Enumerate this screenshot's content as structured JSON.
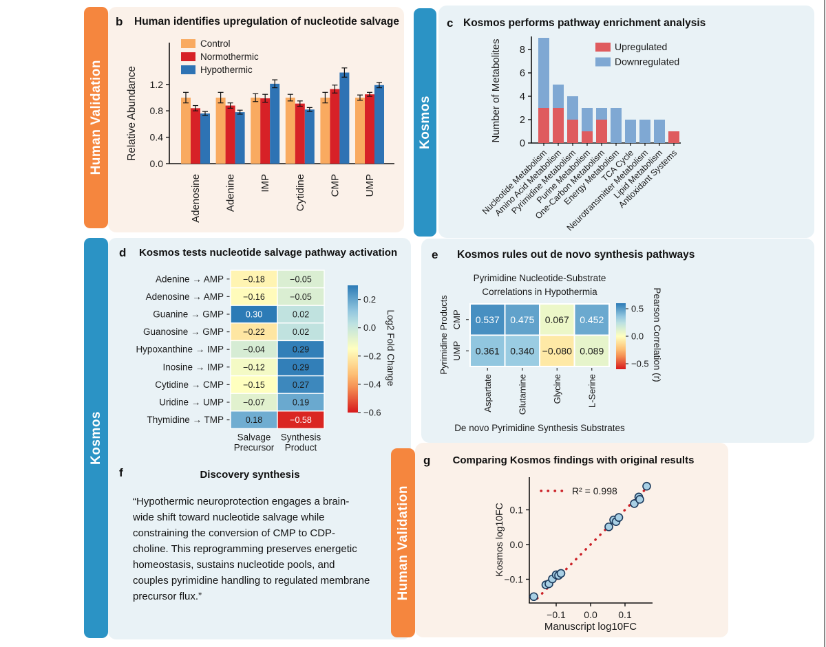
{
  "colors": {
    "tab_orange": "#F5863E",
    "tab_blue": "#2B93C5",
    "panel_cream": "#FBF1E9",
    "panel_lightblue": "#E9F2F6"
  },
  "tabs": [
    {
      "label": "Human Validation"
    },
    {
      "label": "Kosmos"
    },
    {
      "label": "Kosmos"
    },
    {
      "label": "Human Validation"
    }
  ],
  "panels": {
    "b": {
      "letter": "b",
      "title": "Human identifies upregulation of nucleotide salvage"
    },
    "c": {
      "letter": "c",
      "title": "Kosmos performs pathway enrichment analysis"
    },
    "d": {
      "letter": "d",
      "title": "Kosmos tests nucleotide salvage pathway activation"
    },
    "e": {
      "letter": "e",
      "title": "Kosmos rules out de novo synthesis pathways"
    },
    "f": {
      "letter": "f",
      "title": "Discovery synthesis",
      "quote": "“Hypothermic neuroprotection engages a brain-wide shift toward nucleotide salvage while constraining the conversion of CMP to CDP-choline. This reprogramming preserves energetic homeostasis, sustains nucleotide pools, and couples pyrimidine handling to regulated membrane precursor flux.”"
    },
    "g": {
      "letter": "g",
      "title": "Comparing Kosmos findings with original results"
    }
  },
  "chart_data": [
    {
      "panel": "b",
      "type": "bar",
      "grouped": true,
      "title": "Human identifies upregulation of nucleotide salvage",
      "categories": [
        "Adenosine",
        "Adenine",
        "IMP",
        "Cytidine",
        "CMP",
        "UMP"
      ],
      "series": [
        {
          "name": "Control",
          "color": "#F9AA60",
          "values": [
            1.0,
            1.0,
            1.0,
            1.0,
            1.0,
            1.0
          ],
          "errors": [
            0.08,
            0.08,
            0.06,
            0.05,
            0.08,
            0.04
          ]
        },
        {
          "name": "Normothermic",
          "color": "#D72127",
          "values": [
            0.84,
            0.88,
            0.99,
            0.91,
            1.13,
            1.05
          ],
          "errors": [
            0.04,
            0.04,
            0.06,
            0.04,
            0.06,
            0.03
          ]
        },
        {
          "name": "Hypothermic",
          "color": "#2E73B4",
          "values": [
            0.76,
            0.78,
            1.21,
            0.82,
            1.38,
            1.19
          ],
          "errors": [
            0.03,
            0.03,
            0.06,
            0.03,
            0.07,
            0.04
          ]
        }
      ],
      "xlabel": "",
      "ylabel": "Relative Abundance",
      "yticks": [
        0.0,
        0.4,
        0.8,
        1.2
      ],
      "ylim": [
        0,
        1.55
      ],
      "legend_position": "upper left",
      "grid": false
    },
    {
      "panel": "c",
      "type": "bar",
      "stacked": true,
      "title": "Kosmos performs pathway enrichment analysis",
      "categories": [
        "Nucleotide Metabolism",
        "Amino Acid Metabolism",
        "Pyrimidine Metabolism",
        "Purine Metabolism",
        "One-Carbon Metabolism",
        "Energy Metabolism",
        "TCA Cycle",
        "Neurotransmitter Metabolism",
        "Lipid Metabolism",
        "Antioxidant Systems"
      ],
      "series": [
        {
          "name": "Upregulated",
          "color": "#DF5B5E",
          "values": [
            3,
            3,
            2,
            1,
            2,
            0,
            0,
            0,
            0,
            1
          ]
        },
        {
          "name": "Downregulated",
          "color": "#7FA8D3",
          "values": [
            6,
            2,
            2,
            2,
            1,
            3,
            2,
            2,
            2,
            0
          ]
        }
      ],
      "xlabel": "",
      "ylabel": "Number of Metabolites",
      "yticks": [
        0,
        2,
        4,
        6,
        8
      ],
      "ylim": [
        0,
        9.3
      ],
      "legend_position": "upper right",
      "grid": false
    },
    {
      "panel": "d",
      "type": "heatmap",
      "title": "Kosmos tests nucleotide salvage pathway activation",
      "rows": [
        "Adenine → AMP",
        "Adenosine → AMP",
        "Guanine → GMP",
        "Guanosine → GMP",
        "Hypoxanthine → IMP",
        "Inosine → IMP",
        "Cytidine → CMP",
        "Uridine → UMP",
        "Thymidine → TMP"
      ],
      "cols": [
        [
          "Salvage",
          "Precursor"
        ],
        [
          "Synthesis",
          "Product"
        ]
      ],
      "values": [
        [
          -0.18,
          -0.05
        ],
        [
          -0.16,
          -0.05
        ],
        [
          0.3,
          0.02
        ],
        [
          -0.22,
          0.02
        ],
        [
          -0.04,
          0.29
        ],
        [
          -0.12,
          0.29
        ],
        [
          -0.15,
          0.27
        ],
        [
          -0.07,
          0.19
        ],
        [
          0.18,
          -0.58
        ]
      ],
      "white_text": [
        [
          0,
          0
        ],
        [
          0,
          0
        ],
        [
          1,
          0
        ],
        [
          0,
          0
        ],
        [
          0,
          0
        ],
        [
          0,
          0
        ],
        [
          0,
          0
        ],
        [
          0,
          0
        ],
        [
          0,
          1
        ]
      ],
      "decimals": 2,
      "colorbar": {
        "label": "Log2 Fold Change",
        "ticks": [
          0.2,
          0.0,
          -0.2,
          -0.4,
          -0.6
        ],
        "vmin": -0.6,
        "vmax": 0.3
      }
    },
    {
      "panel": "e",
      "type": "heatmap",
      "title": "Kosmos rules out de novo synthesis pathways",
      "title_lines": [
        "Pyrimidine Nucleotide-Substrate",
        "Correlations in Hypothermia"
      ],
      "rows": [
        "CMP",
        "UMP"
      ],
      "cols": [
        "Aspartate",
        "Glutamine",
        "Glycine",
        "L-Serine"
      ],
      "values": [
        [
          0.537,
          0.475,
          0.067,
          0.452
        ],
        [
          0.361,
          0.34,
          -0.08,
          0.089
        ]
      ],
      "white_text": [
        [
          1,
          1,
          0,
          1
        ],
        [
          0,
          0,
          0,
          0
        ]
      ],
      "decimals": 3,
      "xlabel": "De novo Pyrimidine Synthesis Substrates",
      "ylabel": "Pyrimidine Products",
      "colorbar": {
        "label": "Pearson Correlation (r)",
        "ticks": [
          0.5,
          0.0,
          -0.5
        ],
        "vmin": -0.6,
        "vmax": 0.6
      }
    },
    {
      "panel": "g",
      "type": "scatter",
      "title": "Comparing Kosmos findings with original results",
      "legend_label": "R² = 0.998",
      "xlabel": "Manuscript log10FC",
      "ylabel": "Kosmos log10FC",
      "xticks": [
        -0.1,
        0.0,
        0.1
      ],
      "yticks": [
        -0.1,
        0.0,
        0.1
      ],
      "xlim": [
        -0.178,
        0.18
      ],
      "ylim": [
        -0.168,
        0.194
      ],
      "points": [
        [
          -0.165,
          -0.15
        ],
        [
          -0.13,
          -0.116
        ],
        [
          -0.121,
          -0.113
        ],
        [
          -0.111,
          -0.099
        ],
        [
          -0.1,
          -0.087
        ],
        [
          -0.093,
          -0.089
        ],
        [
          -0.086,
          -0.083
        ],
        [
          0.053,
          0.051
        ],
        [
          0.067,
          0.071
        ],
        [
          0.074,
          0.066
        ],
        [
          0.082,
          0.078
        ],
        [
          0.127,
          0.118
        ],
        [
          0.14,
          0.137
        ],
        [
          0.143,
          0.13
        ],
        [
          0.163,
          0.168
        ]
      ],
      "identity_line": {
        "color": "#CB2127",
        "style": "dotted",
        "from": -0.155,
        "to": 0.17
      },
      "point_fill": "#A9D0E5",
      "point_stroke": "#1B3A5C",
      "grid": false
    }
  ]
}
